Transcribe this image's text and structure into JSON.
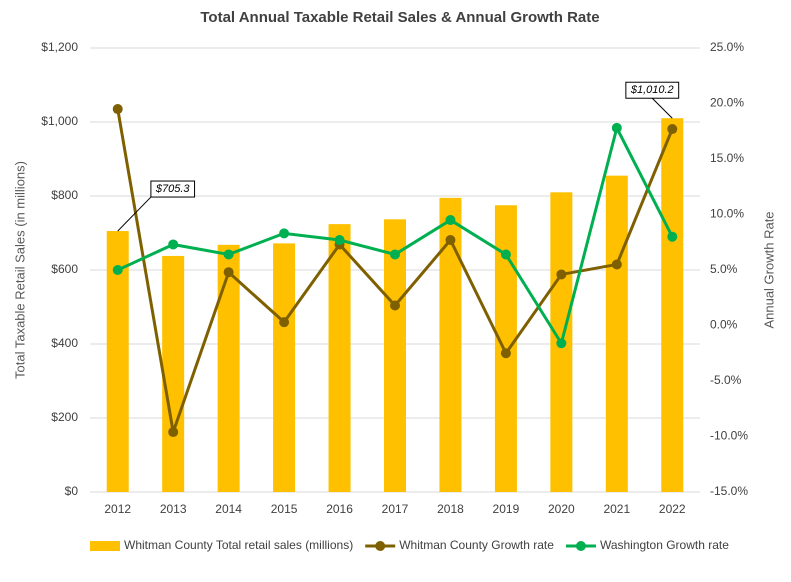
{
  "chart_data": {
    "type": "bar",
    "title": "Total Annual Taxable Retail Sales & Annual Growth Rate",
    "y_label": "Total Taxable Retail Sales (in millions)",
    "y2_label": "Annual Growth Rate",
    "categories": [
      "2012",
      "2013",
      "2014",
      "2015",
      "2016",
      "2017",
      "2018",
      "2019",
      "2020",
      "2021",
      "2022"
    ],
    "series": [
      {
        "name": "Whitman County Total retail sales (millions)",
        "type": "bar",
        "color": "#FFC000",
        "values": [
          705.3,
          638,
          668,
          672,
          724,
          737,
          795,
          775,
          810,
          855,
          1010.2
        ],
        "value_labels": [
          "$705.3",
          null,
          null,
          null,
          null,
          null,
          null,
          null,
          null,
          null,
          "$1,010.2"
        ]
      },
      {
        "name": "Whitman County Growth rate",
        "type": "line",
        "axis": "y2",
        "color": "#7F6000",
        "values": [
          19.5,
          -9.6,
          4.8,
          0.3,
          7.3,
          1.8,
          7.7,
          -2.5,
          4.6,
          5.5,
          17.7
        ]
      },
      {
        "name": "Washington Growth rate",
        "type": "line",
        "axis": "y2",
        "color": "#00B050",
        "values": [
          5.0,
          7.3,
          6.4,
          8.3,
          7.7,
          6.4,
          9.5,
          6.4,
          -1.6,
          17.8,
          8.0
        ]
      }
    ],
    "ylim": [
      0,
      1200
    ],
    "yticks": [
      {
        "value": 0,
        "label": "$0"
      },
      {
        "value": 200,
        "label": "$200"
      },
      {
        "value": 400,
        "label": "$400"
      },
      {
        "value": 600,
        "label": "$600"
      },
      {
        "value": 800,
        "label": "$800"
      },
      {
        "value": 1000,
        "label": "$1,000"
      },
      {
        "value": 1200,
        "label": "$1,200"
      }
    ],
    "y2lim": [
      -15,
      25
    ],
    "y2ticks": [
      {
        "value": -15,
        "label": "-15.0%"
      },
      {
        "value": -10,
        "label": "-10.0%"
      },
      {
        "value": -5,
        "label": "-5.0%"
      },
      {
        "value": 0,
        "label": "0.0%"
      },
      {
        "value": 5,
        "label": "5.0%"
      },
      {
        "value": 10,
        "label": "10.0%"
      },
      {
        "value": 15,
        "label": "15.0%"
      },
      {
        "value": 20,
        "label": "20.0%"
      },
      {
        "value": 25,
        "label": "25.0%"
      }
    ],
    "grid": true,
    "legend": "bottom"
  }
}
